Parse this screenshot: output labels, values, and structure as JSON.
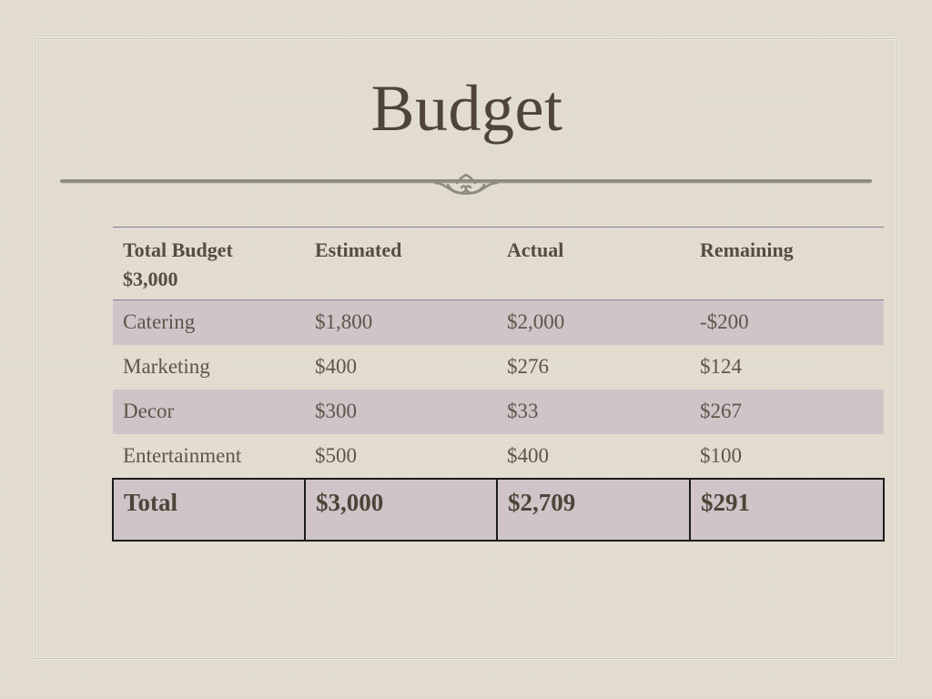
{
  "title": "Budget",
  "table": {
    "headers": [
      {
        "line1": "Total Budget",
        "line2": "$3,000"
      },
      {
        "line1": "Estimated",
        "line2": ""
      },
      {
        "line1": "Actual",
        "line2": ""
      },
      {
        "line1": "Remaining",
        "line2": ""
      }
    ],
    "rows": [
      [
        "Catering",
        "$1,800",
        "$2,000",
        "-$200"
      ],
      [
        "Marketing",
        "$400",
        "$276",
        "$124"
      ],
      [
        "Decor",
        "$300",
        "$33",
        "$267"
      ],
      [
        "Entertainment",
        "$500",
        "$400",
        "$100"
      ]
    ],
    "total": [
      "Total",
      "$3,000",
      "$2,709",
      "$291"
    ]
  },
  "colors": {
    "background": "#e2ddcf",
    "title_text": "#4f4437",
    "row_shade": "#cfc4c8",
    "header_rule": "#8a7c98"
  }
}
